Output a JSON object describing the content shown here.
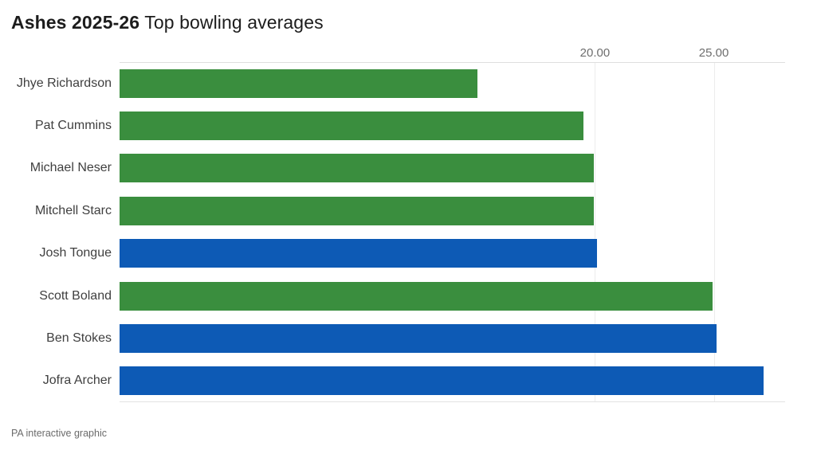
{
  "header": {
    "title_bold": "Ashes 2025-26",
    "title_regular": "Top bowling averages"
  },
  "footer": {
    "credit": "PA interactive graphic"
  },
  "colors": {
    "australia_green": "#3a8e3e",
    "england_blue": "#0d5ab5",
    "grid_line": "#ececec",
    "axis_line": "#dedede",
    "tick_text": "#6e6e6e",
    "label_text": "#3f3f3f"
  },
  "chart_data": {
    "type": "bar",
    "orientation": "horizontal",
    "title": "Ashes 2025-26 Top bowling averages",
    "xlabel": "",
    "ylabel": "",
    "xlim": [
      0,
      28
    ],
    "grid": "vertical-at-labeled-ticks-only",
    "legend": "none",
    "categories": [
      "Jhye Richardson",
      "Pat Cummins",
      "Michael Neser",
      "Mitchell Starc",
      "Josh Tongue",
      "Scott Boland",
      "Ben Stokes",
      "Jofra Archer"
    ],
    "values": [
      15.05,
      19.5,
      19.95,
      19.95,
      20.1,
      24.95,
      25.1,
      27.1
    ],
    "bar_color_keys": [
      "australia_green",
      "australia_green",
      "australia_green",
      "australia_green",
      "england_blue",
      "australia_green",
      "england_blue",
      "england_blue"
    ],
    "xticks": [
      {
        "label": "20.00",
        "value": 20
      },
      {
        "label": "25.00",
        "value": 25
      }
    ]
  }
}
